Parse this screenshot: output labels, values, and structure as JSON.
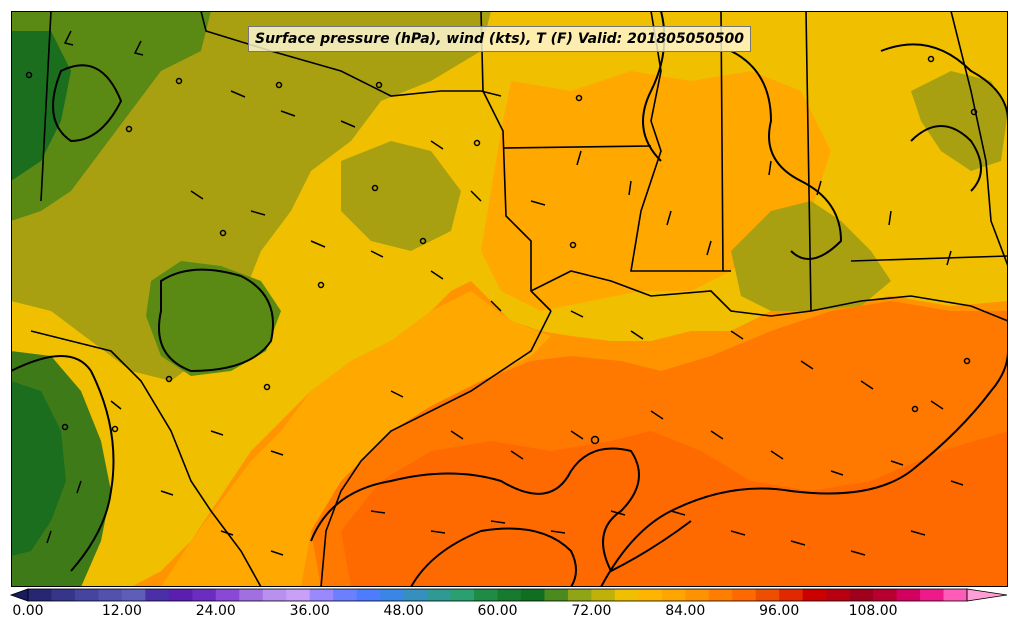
{
  "title": "Surface pressure (hPa), wind (kts), T (F) Valid: 201805050500",
  "colorbar": {
    "min": 0,
    "max": 120,
    "step": 3,
    "tick_labels": [
      "0.00",
      "12.00",
      "24.00",
      "36.00",
      "48.00",
      "60.00",
      "72.00",
      "84.00",
      "96.00",
      "108.00"
    ],
    "tick_values": [
      0,
      12,
      24,
      36,
      48,
      60,
      72,
      84,
      96,
      108
    ],
    "extend": "both",
    "colors": [
      "#262673",
      "#35358a",
      "#4545a0",
      "#5252ad",
      "#5e5eb8",
      "#4a2fa8",
      "#5a1fb0",
      "#6b2cc0",
      "#8a48d6",
      "#a070e0",
      "#b890ee",
      "#c8a0f8",
      "#9a88ff",
      "#6c80ff",
      "#4d7cff",
      "#3a86e6",
      "#3590bf",
      "#2f9a93",
      "#2aa070",
      "#1f8c45",
      "#177a2e",
      "#0f6e1f",
      "#4a8a1e",
      "#8fa515",
      "#c0b00a",
      "#f0c000",
      "#ffb400",
      "#ffa500",
      "#ff9200",
      "#ff7e00",
      "#ff6a00",
      "#ee4e00",
      "#e22800",
      "#cc0000",
      "#b80010",
      "#a0001c",
      "#b80030",
      "#d40060",
      "#ee1a8a",
      "#ff5cb8"
    ],
    "under_color": "#1a1a5e",
    "over_color": "#ff9ed6"
  }
}
